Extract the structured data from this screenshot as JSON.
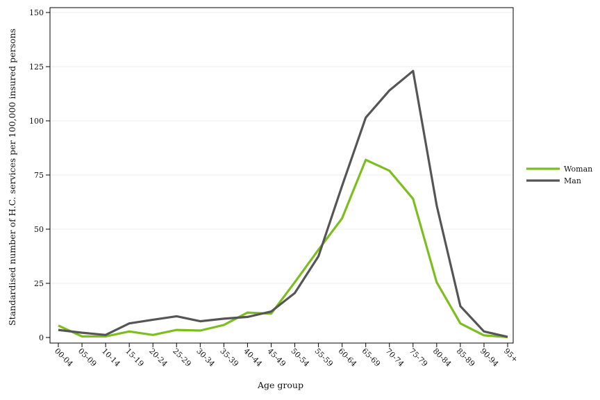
{
  "chart_data": {
    "type": "line",
    "title": "",
    "xlabel": "Age group",
    "ylabel": "Standardised number of H.C. services per 100,000 insured persons",
    "categories": [
      "00-04",
      "05-09",
      "10-14",
      "15-19",
      "20-24",
      "25-29",
      "30-34",
      "35-39",
      "40-44",
      "45-49",
      "50-54",
      "55-59",
      "60-64",
      "65-69",
      "70-74",
      "75-79",
      "80-84",
      "85-89",
      "90-94",
      "95+"
    ],
    "ylim": [
      0,
      150
    ],
    "yticks": [
      0,
      25,
      50,
      75,
      100,
      125,
      150
    ],
    "grid": true,
    "legend_position": "right",
    "series": [
      {
        "name": "Woman",
        "color": "#7dbe1f",
        "values": [
          5.5,
          0.5,
          0.5,
          2.8,
          1.2,
          3.5,
          3.2,
          5.8,
          11.5,
          11,
          25.5,
          40.5,
          55,
          82,
          77,
          64,
          25.5,
          6.5,
          1,
          0.2
        ]
      },
      {
        "name": "Man",
        "color": "#555555",
        "values": [
          3.5,
          2.2,
          1.2,
          6.5,
          8.2,
          9.8,
          7.5,
          8.7,
          9.5,
          12,
          20.5,
          37.5,
          70,
          101.5,
          114,
          123,
          61,
          14.5,
          2.8,
          0.3
        ]
      }
    ]
  }
}
